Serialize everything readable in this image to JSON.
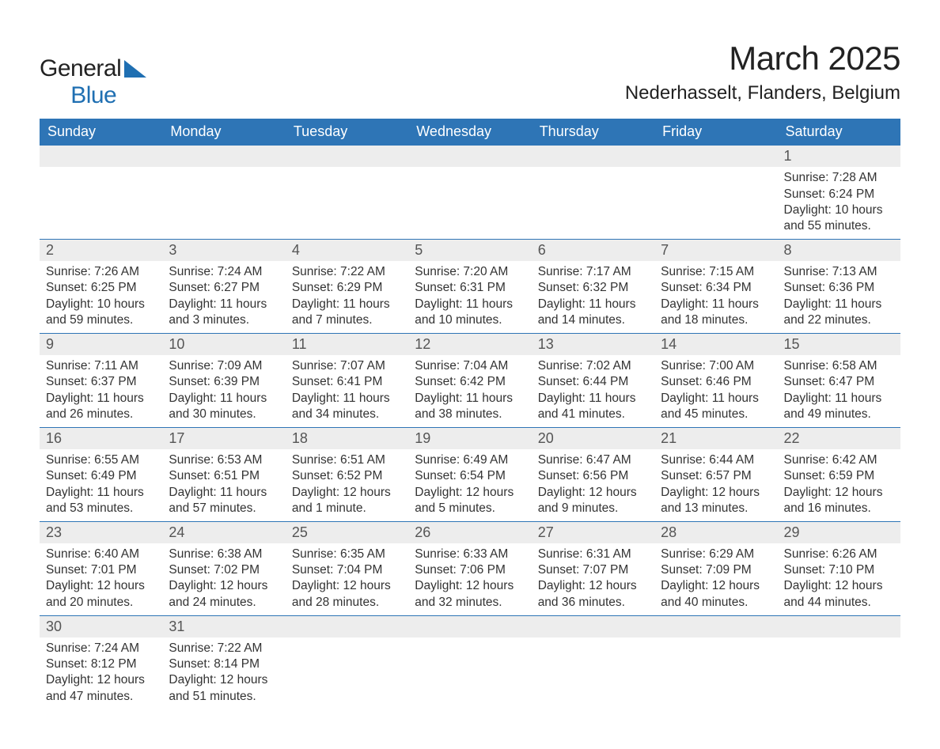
{
  "brand": {
    "name_a": "General",
    "name_b": "Blue"
  },
  "title": "March 2025",
  "subtitle": "Nederhasselt, Flanders, Belgium",
  "colors": {
    "header_bg": "#2e75b6",
    "header_fg": "#ffffff",
    "stripe_bg": "#ededed",
    "rule": "#2e75b6",
    "text": "#333333",
    "brand_blue": "#1f6fb2"
  },
  "weekdays": [
    "Sunday",
    "Monday",
    "Tuesday",
    "Wednesday",
    "Thursday",
    "Friday",
    "Saturday"
  ],
  "weeks": [
    [
      null,
      null,
      null,
      null,
      null,
      null,
      {
        "n": "1",
        "sr": "Sunrise: 7:28 AM",
        "ss": "Sunset: 6:24 PM",
        "d1": "Daylight: 10 hours",
        "d2": "and 55 minutes."
      }
    ],
    [
      {
        "n": "2",
        "sr": "Sunrise: 7:26 AM",
        "ss": "Sunset: 6:25 PM",
        "d1": "Daylight: 10 hours",
        "d2": "and 59 minutes."
      },
      {
        "n": "3",
        "sr": "Sunrise: 7:24 AM",
        "ss": "Sunset: 6:27 PM",
        "d1": "Daylight: 11 hours",
        "d2": "and 3 minutes."
      },
      {
        "n": "4",
        "sr": "Sunrise: 7:22 AM",
        "ss": "Sunset: 6:29 PM",
        "d1": "Daylight: 11 hours",
        "d2": "and 7 minutes."
      },
      {
        "n": "5",
        "sr": "Sunrise: 7:20 AM",
        "ss": "Sunset: 6:31 PM",
        "d1": "Daylight: 11 hours",
        "d2": "and 10 minutes."
      },
      {
        "n": "6",
        "sr": "Sunrise: 7:17 AM",
        "ss": "Sunset: 6:32 PM",
        "d1": "Daylight: 11 hours",
        "d2": "and 14 minutes."
      },
      {
        "n": "7",
        "sr": "Sunrise: 7:15 AM",
        "ss": "Sunset: 6:34 PM",
        "d1": "Daylight: 11 hours",
        "d2": "and 18 minutes."
      },
      {
        "n": "8",
        "sr": "Sunrise: 7:13 AM",
        "ss": "Sunset: 6:36 PM",
        "d1": "Daylight: 11 hours",
        "d2": "and 22 minutes."
      }
    ],
    [
      {
        "n": "9",
        "sr": "Sunrise: 7:11 AM",
        "ss": "Sunset: 6:37 PM",
        "d1": "Daylight: 11 hours",
        "d2": "and 26 minutes."
      },
      {
        "n": "10",
        "sr": "Sunrise: 7:09 AM",
        "ss": "Sunset: 6:39 PM",
        "d1": "Daylight: 11 hours",
        "d2": "and 30 minutes."
      },
      {
        "n": "11",
        "sr": "Sunrise: 7:07 AM",
        "ss": "Sunset: 6:41 PM",
        "d1": "Daylight: 11 hours",
        "d2": "and 34 minutes."
      },
      {
        "n": "12",
        "sr": "Sunrise: 7:04 AM",
        "ss": "Sunset: 6:42 PM",
        "d1": "Daylight: 11 hours",
        "d2": "and 38 minutes."
      },
      {
        "n": "13",
        "sr": "Sunrise: 7:02 AM",
        "ss": "Sunset: 6:44 PM",
        "d1": "Daylight: 11 hours",
        "d2": "and 41 minutes."
      },
      {
        "n": "14",
        "sr": "Sunrise: 7:00 AM",
        "ss": "Sunset: 6:46 PM",
        "d1": "Daylight: 11 hours",
        "d2": "and 45 minutes."
      },
      {
        "n": "15",
        "sr": "Sunrise: 6:58 AM",
        "ss": "Sunset: 6:47 PM",
        "d1": "Daylight: 11 hours",
        "d2": "and 49 minutes."
      }
    ],
    [
      {
        "n": "16",
        "sr": "Sunrise: 6:55 AM",
        "ss": "Sunset: 6:49 PM",
        "d1": "Daylight: 11 hours",
        "d2": "and 53 minutes."
      },
      {
        "n": "17",
        "sr": "Sunrise: 6:53 AM",
        "ss": "Sunset: 6:51 PM",
        "d1": "Daylight: 11 hours",
        "d2": "and 57 minutes."
      },
      {
        "n": "18",
        "sr": "Sunrise: 6:51 AM",
        "ss": "Sunset: 6:52 PM",
        "d1": "Daylight: 12 hours",
        "d2": "and 1 minute."
      },
      {
        "n": "19",
        "sr": "Sunrise: 6:49 AM",
        "ss": "Sunset: 6:54 PM",
        "d1": "Daylight: 12 hours",
        "d2": "and 5 minutes."
      },
      {
        "n": "20",
        "sr": "Sunrise: 6:47 AM",
        "ss": "Sunset: 6:56 PM",
        "d1": "Daylight: 12 hours",
        "d2": "and 9 minutes."
      },
      {
        "n": "21",
        "sr": "Sunrise: 6:44 AM",
        "ss": "Sunset: 6:57 PM",
        "d1": "Daylight: 12 hours",
        "d2": "and 13 minutes."
      },
      {
        "n": "22",
        "sr": "Sunrise: 6:42 AM",
        "ss": "Sunset: 6:59 PM",
        "d1": "Daylight: 12 hours",
        "d2": "and 16 minutes."
      }
    ],
    [
      {
        "n": "23",
        "sr": "Sunrise: 6:40 AM",
        "ss": "Sunset: 7:01 PM",
        "d1": "Daylight: 12 hours",
        "d2": "and 20 minutes."
      },
      {
        "n": "24",
        "sr": "Sunrise: 6:38 AM",
        "ss": "Sunset: 7:02 PM",
        "d1": "Daylight: 12 hours",
        "d2": "and 24 minutes."
      },
      {
        "n": "25",
        "sr": "Sunrise: 6:35 AM",
        "ss": "Sunset: 7:04 PM",
        "d1": "Daylight: 12 hours",
        "d2": "and 28 minutes."
      },
      {
        "n": "26",
        "sr": "Sunrise: 6:33 AM",
        "ss": "Sunset: 7:06 PM",
        "d1": "Daylight: 12 hours",
        "d2": "and 32 minutes."
      },
      {
        "n": "27",
        "sr": "Sunrise: 6:31 AM",
        "ss": "Sunset: 7:07 PM",
        "d1": "Daylight: 12 hours",
        "d2": "and 36 minutes."
      },
      {
        "n": "28",
        "sr": "Sunrise: 6:29 AM",
        "ss": "Sunset: 7:09 PM",
        "d1": "Daylight: 12 hours",
        "d2": "and 40 minutes."
      },
      {
        "n": "29",
        "sr": "Sunrise: 6:26 AM",
        "ss": "Sunset: 7:10 PM",
        "d1": "Daylight: 12 hours",
        "d2": "and 44 minutes."
      }
    ],
    [
      {
        "n": "30",
        "sr": "Sunrise: 7:24 AM",
        "ss": "Sunset: 8:12 PM",
        "d1": "Daylight: 12 hours",
        "d2": "and 47 minutes."
      },
      {
        "n": "31",
        "sr": "Sunrise: 7:22 AM",
        "ss": "Sunset: 8:14 PM",
        "d1": "Daylight: 12 hours",
        "d2": "and 51 minutes."
      },
      null,
      null,
      null,
      null,
      null
    ]
  ]
}
